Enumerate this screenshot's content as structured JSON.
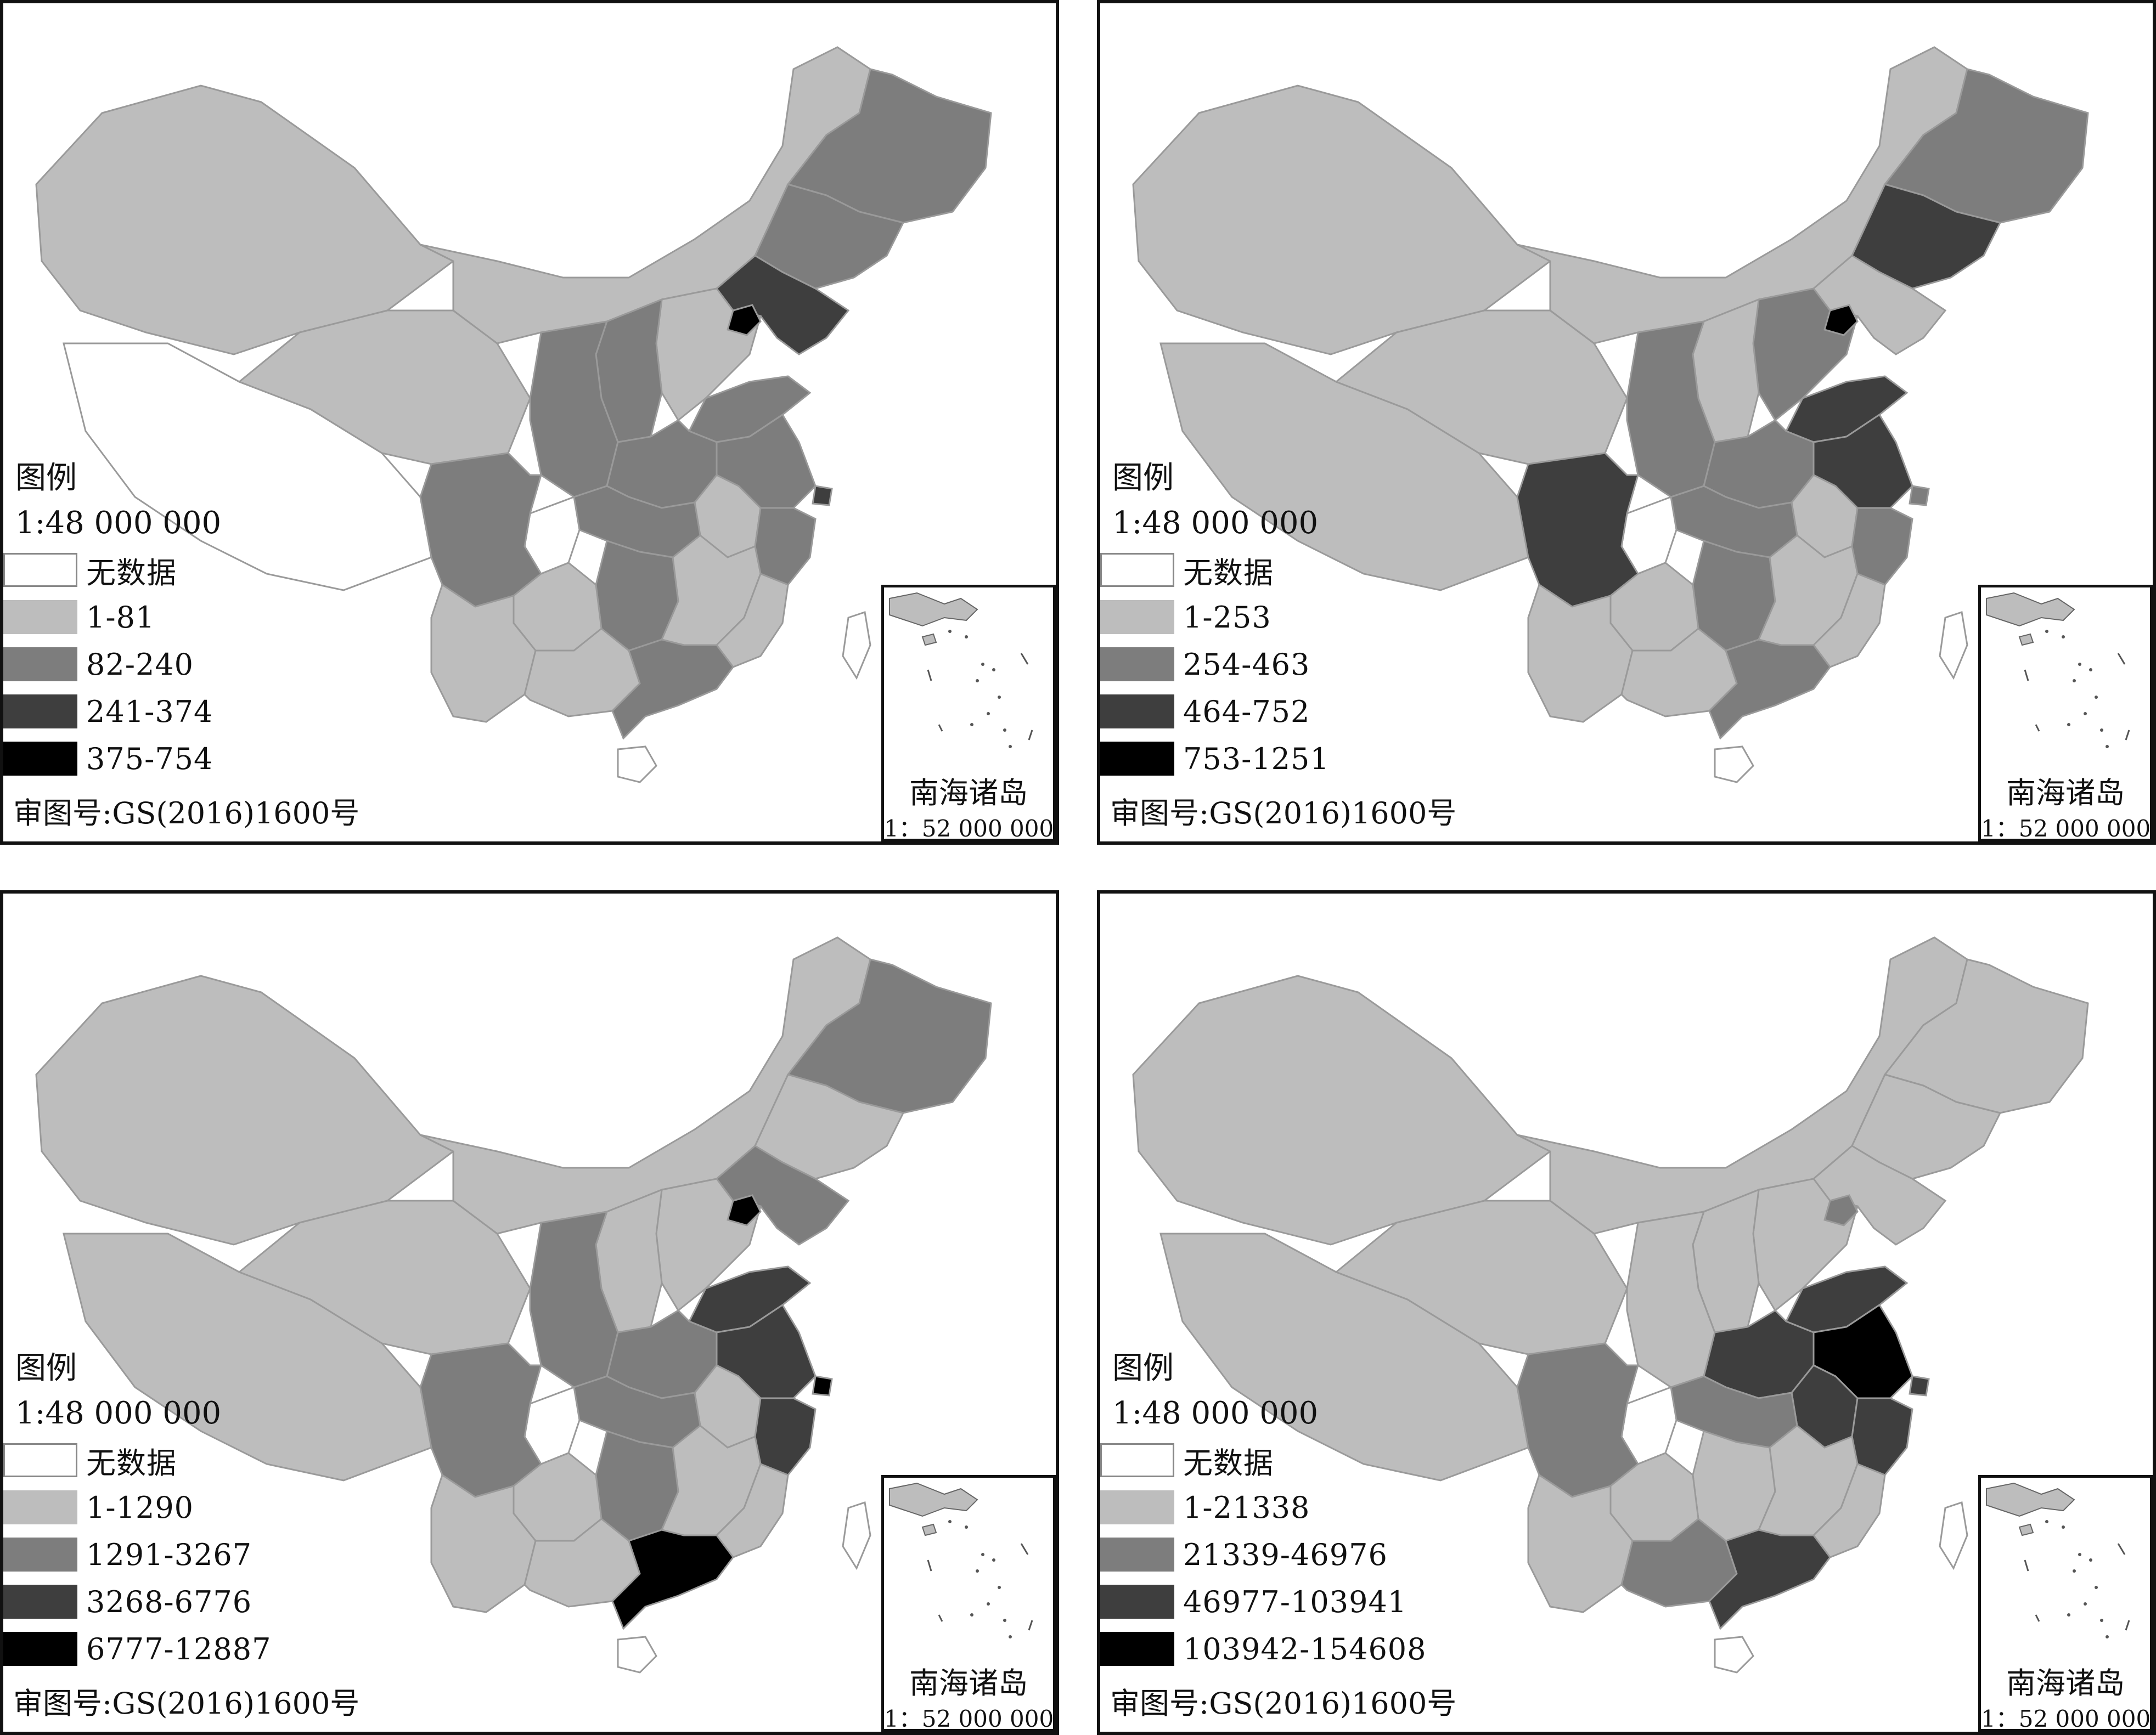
{
  "common": {
    "legend_title": "图例",
    "scale": "1:48 000 000",
    "approval_no": "审图号:GS(2016)1600号",
    "inset_title": "南海诸岛",
    "inset_scale": "1：52 000 000",
    "no_data_label": "无数据"
  },
  "colors": {
    "no_data": "#ffffff",
    "class1": "#bdbdbd",
    "class2": "#7d7d7d",
    "class3": "#3e3e3e",
    "class4": "#000000",
    "border": "#9a9a9a"
  },
  "panels": [
    {
      "id": "a",
      "legend": [
        {
          "label": "无数据",
          "class": "no_data"
        },
        {
          "label": "1-81",
          "class": "class1"
        },
        {
          "label": "82-240",
          "class": "class2"
        },
        {
          "label": "241-374",
          "class": "class3"
        },
        {
          "label": "375-754",
          "class": "class4"
        }
      ],
      "regions": {
        "northwest": "class1",
        "tibet": "no_data",
        "qinghai": "class1",
        "innermongolia": "class1",
        "heilongjiang": "class2",
        "jilin": "class2",
        "liaoning": "class3",
        "beijing": "class4",
        "hebei": "class1",
        "shanxi": "class2",
        "shaanxi": "class2",
        "shandong": "class2",
        "henan": "class2",
        "sichuan": "class2",
        "chongqing": "no_data",
        "hubei": "class2",
        "jiangsu": "class2",
        "anhui": "class1",
        "zhejiang": "class2",
        "shanghai": "class3",
        "hunan": "class2",
        "jiangxi": "class1",
        "fujian": "class1",
        "yunnan": "class1",
        "guizhou": "class1",
        "guangxi": "class1",
        "guangdong": "class2",
        "hainan": "no_data",
        "taiwan": "no_data"
      }
    },
    {
      "id": "b",
      "legend": [
        {
          "label": "无数据",
          "class": "no_data"
        },
        {
          "label": "1-253",
          "class": "class1"
        },
        {
          "label": "254-463",
          "class": "class2"
        },
        {
          "label": "464-752",
          "class": "class3"
        },
        {
          "label": "753-1251",
          "class": "class4"
        }
      ],
      "regions": {
        "northwest": "class1",
        "tibet": "class1",
        "qinghai": "class1",
        "innermongolia": "class1",
        "heilongjiang": "class2",
        "jilin": "class3",
        "liaoning": "class1",
        "beijing": "class4",
        "hebei": "class2",
        "shanxi": "class1",
        "shaanxi": "class2",
        "shandong": "class3",
        "henan": "class2",
        "sichuan": "class3",
        "chongqing": "no_data",
        "hubei": "class2",
        "jiangsu": "class3",
        "anhui": "class1",
        "zhejiang": "class2",
        "shanghai": "class2",
        "hunan": "class2",
        "jiangxi": "class1",
        "fujian": "class1",
        "yunnan": "class1",
        "guizhou": "class1",
        "guangxi": "class1",
        "guangdong": "class2",
        "hainan": "no_data",
        "taiwan": "no_data"
      }
    },
    {
      "id": "c",
      "legend": [
        {
          "label": "无数据",
          "class": "no_data"
        },
        {
          "label": "1-1290",
          "class": "class1"
        },
        {
          "label": "1291-3267",
          "class": "class2"
        },
        {
          "label": "3268-6776",
          "class": "class3"
        },
        {
          "label": "6777-12887",
          "class": "class4"
        }
      ],
      "regions": {
        "northwest": "class1",
        "tibet": "class1",
        "qinghai": "class1",
        "innermongolia": "class1",
        "heilongjiang": "class2",
        "jilin": "class1",
        "liaoning": "class2",
        "beijing": "class4",
        "hebei": "class1",
        "shanxi": "class1",
        "shaanxi": "class2",
        "shandong": "class3",
        "henan": "class2",
        "sichuan": "class2",
        "chongqing": "no_data",
        "hubei": "class2",
        "jiangsu": "class3",
        "anhui": "class1",
        "zhejiang": "class3",
        "shanghai": "class4",
        "hunan": "class2",
        "jiangxi": "class1",
        "fujian": "class1",
        "yunnan": "class1",
        "guizhou": "class1",
        "guangxi": "class1",
        "guangdong": "class4",
        "hainan": "no_data",
        "taiwan": "no_data"
      }
    },
    {
      "id": "d",
      "legend": [
        {
          "label": "无数据",
          "class": "no_data"
        },
        {
          "label": "1-21338",
          "class": "class1"
        },
        {
          "label": "21339-46976",
          "class": "class2"
        },
        {
          "label": "46977-103941",
          "class": "class3"
        },
        {
          "label": "103942-154608",
          "class": "class4"
        }
      ],
      "regions": {
        "northwest": "class1",
        "tibet": "class1",
        "qinghai": "class1",
        "innermongolia": "class1",
        "heilongjiang": "class1",
        "jilin": "class1",
        "liaoning": "class1",
        "beijing": "class2",
        "hebei": "class1",
        "shanxi": "class1",
        "shaanxi": "class1",
        "shandong": "class3",
        "henan": "class3",
        "sichuan": "class2",
        "chongqing": "no_data",
        "hubei": "class2",
        "jiangsu": "class4",
        "anhui": "class3",
        "zhejiang": "class3",
        "shanghai": "class3",
        "hunan": "class1",
        "jiangxi": "class1",
        "fujian": "class1",
        "yunnan": "class1",
        "guizhou": "class1",
        "guangxi": "class2",
        "guangdong": "class3",
        "hainan": "no_data",
        "taiwan": "no_data"
      }
    }
  ]
}
